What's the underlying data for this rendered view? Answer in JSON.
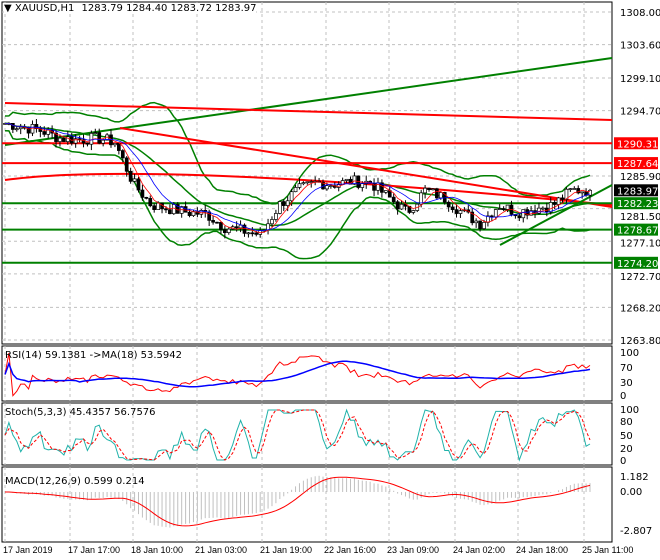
{
  "header": {
    "symbol": "XAUUSD,H1",
    "ohlc": "1283.79 1284.40 1283.72 1283.97"
  },
  "chart_data": {
    "type": "candlestick",
    "price_axis_ticks": [
      1308.0,
      1303.6,
      1299.1,
      1294.7,
      1285.9,
      1281.5,
      1277.1,
      1272.7,
      1268.2,
      1263.8
    ],
    "ylim": [
      1263.8,
      1308.0
    ],
    "time_labels": [
      "17 Jan 2019",
      "17 Jan 17:00",
      "18 Jan 10:00",
      "21 Jan 03:00",
      "21 Jan 19:00",
      "22 Jan 16:00",
      "23 Jan 09:00",
      "24 Jan 02:00",
      "24 Jan 18:00",
      "25 Jan 11:00"
    ],
    "close_approx": [
      1293,
      1292.5,
      1292,
      1291,
      1290.8,
      1291,
      1290.5,
      1285,
      1282,
      1281.5,
      1281,
      1280.8,
      1279,
      1278.5,
      1278,
      1282,
      1284,
      1285,
      1284.8,
      1285.2,
      1285,
      1283,
      1281,
      1284,
      1283,
      1281,
      1279.5,
      1282,
      1281,
      1281.5,
      1282,
      1284,
      1283.97
    ],
    "current_price": {
      "label": "1283.97",
      "color": "#000000"
    },
    "levels": [
      {
        "value": 1290.31,
        "label": "1290.31",
        "color": "#ff0000"
      },
      {
        "value": 1287.64,
        "label": "1287.64",
        "color": "#ff0000"
      },
      {
        "value": 1282.23,
        "label": "1282.23",
        "color": "#008000"
      },
      {
        "value": 1278.67,
        "label": "1278.67",
        "color": "#008000"
      },
      {
        "value": 1274.2,
        "label": "1274.20",
        "color": "#008000"
      }
    ],
    "grid": true
  },
  "rsi": {
    "title": "RSI(14) 59.1381  ->MA(18) 53.5942",
    "ticks": [
      "100",
      "70",
      "30",
      "0"
    ],
    "colors": {
      "rsi": "#ff0000",
      "ma": "#0000ff"
    }
  },
  "stoch": {
    "title": "Stoch(5,3,3) 45.4357 56.7576",
    "ticks": [
      "100",
      "80",
      "50",
      "20",
      "0"
    ],
    "colors": {
      "main": "#20b2aa",
      "signal": "#ff0000"
    }
  },
  "macd": {
    "title": "MACD(12,26,9) 0.599 0.214",
    "ticks": [
      "1.182",
      "0.00",
      "-2.807"
    ],
    "colors": {
      "hist": "#c0c0c0",
      "signal": "#ff0000"
    }
  }
}
